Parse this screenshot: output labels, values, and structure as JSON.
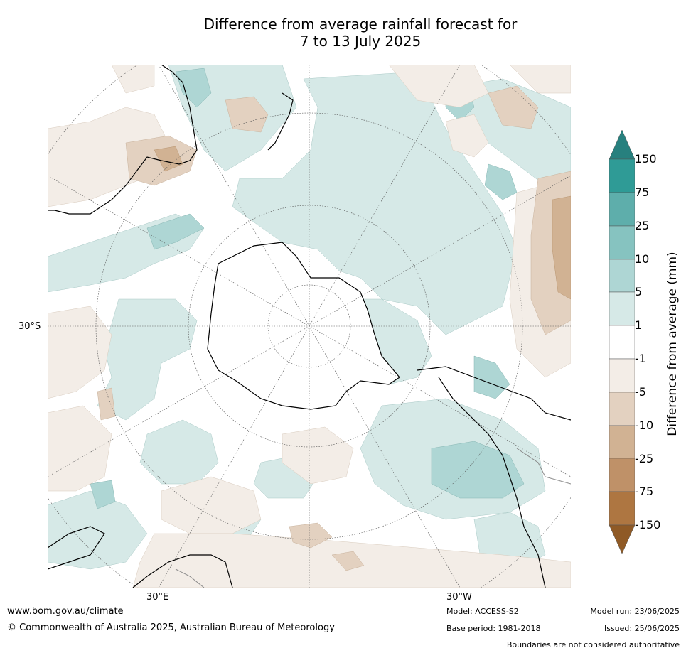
{
  "title_line1": "Difference from average rainfall forecast for",
  "title_line2": "7 to 13 July 2025",
  "map": {
    "projection": "south-polar-stereographic",
    "labels": {
      "lat_30s": "30°S",
      "lon_30e": "30°E",
      "lon_30w": "30°W"
    }
  },
  "colorbar": {
    "label": "Difference from average (mm)",
    "ticks": [
      "150",
      "75",
      "25",
      "10",
      "5",
      "1",
      "-1",
      "-5",
      "-10",
      "-25",
      "-75",
      "-150"
    ],
    "colors": {
      "above_150": "#27807e",
      "75_150": "#2f9b96",
      "25_75": "#5eaeab",
      "10_25": "#86c3c0",
      "5_10": "#aed6d4",
      "1_5": "#d6e9e7",
      "neutral": "#ffffff",
      "m5_m1": "#f3ede7",
      "m10_m5": "#e3d1c0",
      "m25_m10": "#d1b293",
      "m75_m25": "#bf9168",
      "m150_m75": "#ae7641",
      "below_m150": "#8f5a26"
    }
  },
  "footer": {
    "url": "www.bom.gov.au/climate",
    "copyright": "© Commonwealth of Australia 2025, Australian Bureau of Meteorology",
    "model": "Model: ACCESS-S2",
    "base_period": "Base period: 1981-2018",
    "model_run": "Model run: 23/06/2025",
    "issued": "Issued: 25/06/2025",
    "disclaimer": "Boundaries are not considered authoritative"
  }
}
